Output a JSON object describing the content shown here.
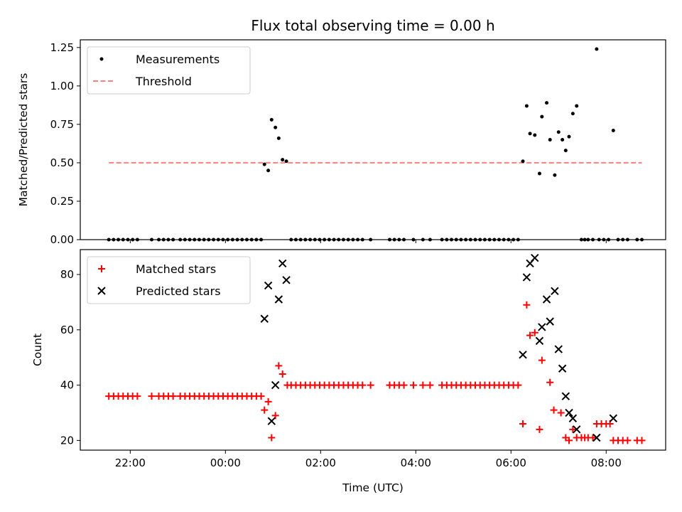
{
  "chart_data": [
    {
      "type": "scatter",
      "title": "Flux total observing time = 0.00 h",
      "ylabel": "Matched/Predicted stars",
      "xlabel": "",
      "x_unit": "hours from 00:00 UTC",
      "xlim": [
        -3.05,
        9.25
      ],
      "ylim": [
        0,
        1.3
      ],
      "yticks": [
        0.0,
        0.25,
        0.5,
        0.75,
        1.0,
        1.25
      ],
      "yticklabels": [
        "0.00",
        "0.25",
        "0.50",
        "0.75",
        "1.00",
        "1.25"
      ],
      "legend": {
        "placement": "top-left",
        "entries": [
          {
            "label": "Measurements",
            "color": "#000000",
            "marker": "dot"
          },
          {
            "label": "Threshold",
            "color": "#ff7f7f",
            "marker": "dashed-line"
          }
        ]
      },
      "threshold": {
        "name": "Threshold",
        "y": 0.5,
        "x_range": [
          -2.45,
          8.75
        ],
        "color": "#ff7f7f"
      },
      "series": [
        {
          "name": "Measurements",
          "color": "#000000",
          "points": [
            [
              -2.45,
              0
            ],
            [
              -2.35,
              0
            ],
            [
              -2.25,
              0
            ],
            [
              -2.15,
              0
            ],
            [
              -2.05,
              0
            ],
            [
              -1.95,
              0
            ],
            [
              -1.85,
              0
            ],
            [
              -1.55,
              0
            ],
            [
              -1.4,
              0
            ],
            [
              -1.3,
              0
            ],
            [
              -1.2,
              0
            ],
            [
              -1.1,
              0
            ],
            [
              -0.95,
              0
            ],
            [
              -0.85,
              0
            ],
            [
              -0.75,
              0
            ],
            [
              -0.65,
              0
            ],
            [
              -0.55,
              0
            ],
            [
              -0.45,
              0
            ],
            [
              -0.35,
              0
            ],
            [
              -0.25,
              0
            ],
            [
              -0.15,
              0
            ],
            [
              -0.05,
              0
            ],
            [
              0.05,
              0
            ],
            [
              0.15,
              0
            ],
            [
              0.25,
              0
            ],
            [
              0.35,
              0
            ],
            [
              0.45,
              0
            ],
            [
              0.55,
              0
            ],
            [
              0.65,
              0
            ],
            [
              0.75,
              0
            ],
            [
              0.82,
              0.49
            ],
            [
              0.9,
              0.45
            ],
            [
              0.97,
              0.78
            ],
            [
              1.05,
              0.73
            ],
            [
              1.12,
              0.66
            ],
            [
              1.2,
              0.52
            ],
            [
              1.28,
              0.51
            ],
            [
              1.38,
              0
            ],
            [
              1.48,
              0
            ],
            [
              1.58,
              0
            ],
            [
              1.68,
              0
            ],
            [
              1.78,
              0
            ],
            [
              1.88,
              0
            ],
            [
              1.98,
              0
            ],
            [
              2.08,
              0
            ],
            [
              2.18,
              0
            ],
            [
              2.28,
              0
            ],
            [
              2.38,
              0
            ],
            [
              2.48,
              0
            ],
            [
              2.58,
              0
            ],
            [
              2.68,
              0
            ],
            [
              2.78,
              0
            ],
            [
              2.88,
              0
            ],
            [
              3.05,
              0
            ],
            [
              3.45,
              0
            ],
            [
              3.55,
              0
            ],
            [
              3.65,
              0
            ],
            [
              3.75,
              0
            ],
            [
              3.95,
              0
            ],
            [
              4.15,
              0
            ],
            [
              4.3,
              0
            ],
            [
              4.55,
              0
            ],
            [
              4.65,
              0
            ],
            [
              4.75,
              0
            ],
            [
              4.85,
              0
            ],
            [
              4.95,
              0
            ],
            [
              5.05,
              0
            ],
            [
              5.15,
              0
            ],
            [
              5.25,
              0
            ],
            [
              5.35,
              0
            ],
            [
              5.45,
              0
            ],
            [
              5.55,
              0
            ],
            [
              5.65,
              0
            ],
            [
              5.75,
              0
            ],
            [
              5.85,
              0
            ],
            [
              5.95,
              0
            ],
            [
              6.05,
              0
            ],
            [
              6.15,
              0
            ],
            [
              6.25,
              0.51
            ],
            [
              6.33,
              0.87
            ],
            [
              6.4,
              0.69
            ],
            [
              6.5,
              0.68
            ],
            [
              6.6,
              0.43
            ],
            [
              6.65,
              0.8
            ],
            [
              6.75,
              0.89
            ],
            [
              6.82,
              0.65
            ],
            [
              6.92,
              0.42
            ],
            [
              7.0,
              0.7
            ],
            [
              7.08,
              0.65
            ],
            [
              7.15,
              0.58
            ],
            [
              7.22,
              0.67
            ],
            [
              7.3,
              0.82
            ],
            [
              7.38,
              0.87
            ],
            [
              7.48,
              0
            ],
            [
              7.55,
              0
            ],
            [
              7.62,
              0
            ],
            [
              7.72,
              0
            ],
            [
              7.8,
              1.24
            ],
            [
              7.85,
              0
            ],
            [
              7.95,
              0
            ],
            [
              8.05,
              0
            ],
            [
              8.15,
              0.71
            ],
            [
              8.25,
              0
            ],
            [
              8.35,
              0
            ],
            [
              8.45,
              0
            ],
            [
              8.65,
              0
            ],
            [
              8.75,
              0
            ]
          ]
        }
      ]
    },
    {
      "type": "scatter",
      "title": "",
      "ylabel": "Count",
      "xlabel": "Time (UTC)",
      "x_unit": "hours from 00:00 UTC",
      "xlim": [
        -3.05,
        9.25
      ],
      "ylim": [
        16.5,
        89
      ],
      "xticks": [
        -2,
        0,
        2,
        4,
        6,
        8
      ],
      "xticklabels": [
        "22:00",
        "00:00",
        "02:00",
        "04:00",
        "06:00",
        "08:00"
      ],
      "yticks": [
        20,
        40,
        60,
        80
      ],
      "yticklabels": [
        "20",
        "40",
        "60",
        "80"
      ],
      "legend": {
        "placement": "top-left",
        "entries": [
          {
            "label": "Matched stars",
            "color": "#ff0000",
            "marker": "plus"
          },
          {
            "label": "Predicted stars",
            "color": "#000000",
            "marker": "x"
          }
        ]
      },
      "series": [
        {
          "name": "Matched stars",
          "color": "#ff0000",
          "marker": "plus",
          "points": [
            [
              -2.45,
              36
            ],
            [
              -2.35,
              36
            ],
            [
              -2.25,
              36
            ],
            [
              -2.15,
              36
            ],
            [
              -2.05,
              36
            ],
            [
              -1.95,
              36
            ],
            [
              -1.85,
              36
            ],
            [
              -1.55,
              36
            ],
            [
              -1.4,
              36
            ],
            [
              -1.3,
              36
            ],
            [
              -1.2,
              36
            ],
            [
              -1.1,
              36
            ],
            [
              -0.95,
              36
            ],
            [
              -0.85,
              36
            ],
            [
              -0.75,
              36
            ],
            [
              -0.65,
              36
            ],
            [
              -0.55,
              36
            ],
            [
              -0.45,
              36
            ],
            [
              -0.35,
              36
            ],
            [
              -0.25,
              36
            ],
            [
              -0.15,
              36
            ],
            [
              -0.05,
              36
            ],
            [
              0.05,
              36
            ],
            [
              0.15,
              36
            ],
            [
              0.25,
              36
            ],
            [
              0.35,
              36
            ],
            [
              0.45,
              36
            ],
            [
              0.55,
              36
            ],
            [
              0.65,
              36
            ],
            [
              0.75,
              36
            ],
            [
              0.82,
              31
            ],
            [
              0.9,
              34
            ],
            [
              0.97,
              21
            ],
            [
              1.05,
              29
            ],
            [
              1.12,
              47
            ],
            [
              1.2,
              44
            ],
            [
              1.3,
              40
            ],
            [
              1.38,
              40
            ],
            [
              1.48,
              40
            ],
            [
              1.58,
              40
            ],
            [
              1.68,
              40
            ],
            [
              1.78,
              40
            ],
            [
              1.88,
              40
            ],
            [
              1.98,
              40
            ],
            [
              2.08,
              40
            ],
            [
              2.18,
              40
            ],
            [
              2.28,
              40
            ],
            [
              2.38,
              40
            ],
            [
              2.48,
              40
            ],
            [
              2.58,
              40
            ],
            [
              2.68,
              40
            ],
            [
              2.78,
              40
            ],
            [
              2.88,
              40
            ],
            [
              3.05,
              40
            ],
            [
              3.45,
              40
            ],
            [
              3.55,
              40
            ],
            [
              3.65,
              40
            ],
            [
              3.75,
              40
            ],
            [
              3.95,
              40
            ],
            [
              4.15,
              40
            ],
            [
              4.3,
              40
            ],
            [
              4.55,
              40
            ],
            [
              4.65,
              40
            ],
            [
              4.75,
              40
            ],
            [
              4.85,
              40
            ],
            [
              4.95,
              40
            ],
            [
              5.05,
              40
            ],
            [
              5.15,
              40
            ],
            [
              5.25,
              40
            ],
            [
              5.35,
              40
            ],
            [
              5.45,
              40
            ],
            [
              5.55,
              40
            ],
            [
              5.65,
              40
            ],
            [
              5.75,
              40
            ],
            [
              5.85,
              40
            ],
            [
              5.95,
              40
            ],
            [
              6.05,
              40
            ],
            [
              6.15,
              40
            ],
            [
              6.25,
              26
            ],
            [
              6.33,
              69
            ],
            [
              6.4,
              58
            ],
            [
              6.5,
              59
            ],
            [
              6.6,
              24
            ],
            [
              6.65,
              49
            ],
            [
              6.82,
              41
            ],
            [
              6.9,
              31
            ],
            [
              7.05,
              30
            ],
            [
              7.15,
              21
            ],
            [
              7.22,
              20
            ],
            [
              7.3,
              24
            ],
            [
              7.38,
              21
            ],
            [
              7.48,
              21
            ],
            [
              7.55,
              21
            ],
            [
              7.62,
              21
            ],
            [
              7.72,
              21
            ],
            [
              7.8,
              26
            ],
            [
              7.9,
              26
            ],
            [
              8.0,
              26
            ],
            [
              8.08,
              26
            ],
            [
              8.15,
              20
            ],
            [
              8.25,
              20
            ],
            [
              8.35,
              20
            ],
            [
              8.45,
              20
            ],
            [
              8.65,
              20
            ],
            [
              8.75,
              20
            ]
          ]
        },
        {
          "name": "Predicted stars",
          "color": "#000000",
          "marker": "x",
          "points": [
            [
              0.82,
              64
            ],
            [
              0.9,
              76
            ],
            [
              0.97,
              27
            ],
            [
              1.05,
              40
            ],
            [
              1.12,
              71
            ],
            [
              1.2,
              84
            ],
            [
              1.28,
              78
            ],
            [
              6.25,
              51
            ],
            [
              6.33,
              79
            ],
            [
              6.4,
              84
            ],
            [
              6.5,
              86
            ],
            [
              6.6,
              56
            ],
            [
              6.65,
              61
            ],
            [
              6.75,
              71
            ],
            [
              6.82,
              63
            ],
            [
              6.92,
              74
            ],
            [
              7.0,
              53
            ],
            [
              7.08,
              46
            ],
            [
              7.15,
              36
            ],
            [
              7.22,
              30
            ],
            [
              7.3,
              28
            ],
            [
              7.38,
              24
            ],
            [
              7.8,
              21
            ],
            [
              8.15,
              28
            ]
          ]
        }
      ]
    }
  ]
}
